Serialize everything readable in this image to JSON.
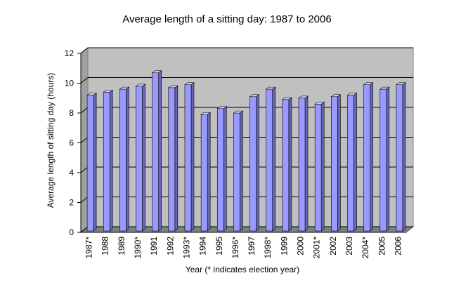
{
  "chart_data": {
    "type": "bar",
    "title": "Average length of a sitting day: 1987 to 2006",
    "x_label": "Year (* indicates election year)",
    "y_label": "Average length of sitting day (hours)",
    "categories": [
      "1987*",
      "1988",
      "1989",
      "1990*",
      "1991",
      "1992",
      "1993*",
      "1994",
      "1995",
      "1996*",
      "1997",
      "1998*",
      "1999",
      "2000",
      "2001*",
      "2002",
      "2003",
      "2004*",
      "2005",
      "2006"
    ],
    "values": [
      9.1,
      9.3,
      9.5,
      9.7,
      10.6,
      9.6,
      9.8,
      7.8,
      8.2,
      7.9,
      9.0,
      9.5,
      8.8,
      8.9,
      8.5,
      9.0,
      9.1,
      9.8,
      9.5,
      9.8
    ],
    "color": "#9999ff",
    "ylim": [
      0,
      12
    ],
    "yticks": [
      0,
      2,
      4,
      6,
      8,
      10,
      12
    ],
    "grid": true
  }
}
